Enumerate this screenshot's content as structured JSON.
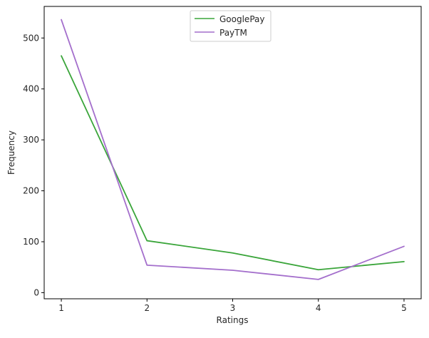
{
  "chart_data": {
    "type": "line",
    "title": "",
    "xlabel": "Ratings",
    "ylabel": "Frequency",
    "x": [
      1,
      2,
      3,
      4,
      5
    ],
    "x_ticks": [
      1,
      2,
      3,
      4,
      5
    ],
    "x_tick_labels": [
      "1",
      "2",
      "3",
      "4",
      "5"
    ],
    "xlim": [
      0.8,
      5.2
    ],
    "y_ticks": [
      0,
      100,
      200,
      300,
      400,
      500
    ],
    "y_tick_labels": [
      "0",
      "100",
      "200",
      "300",
      "400",
      "500"
    ],
    "ylim": [
      -12,
      562
    ],
    "grid": false,
    "legend": {
      "position": "top-center"
    },
    "series": [
      {
        "name": "GooglePay",
        "color": "#3aa53a",
        "values": [
          465,
          102,
          78,
          45,
          61
        ]
      },
      {
        "name": "PayTM",
        "color": "#a46fcc",
        "values": [
          536,
          54,
          44,
          26,
          91
        ]
      }
    ]
  }
}
